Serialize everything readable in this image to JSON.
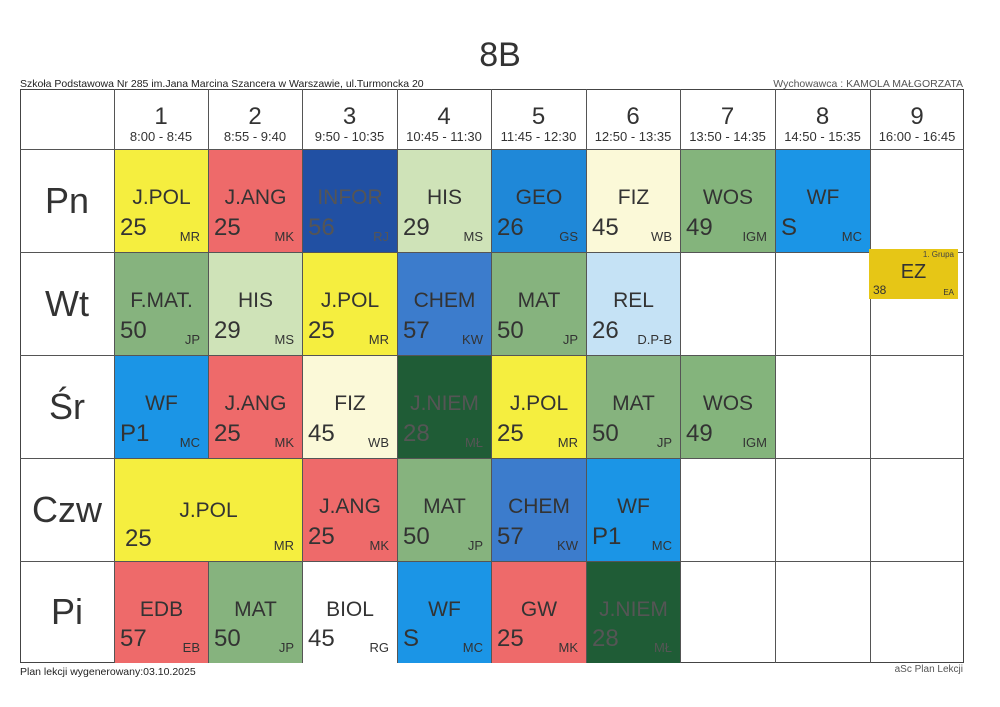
{
  "title": "8B",
  "school": "Szkoła Podstawowa Nr 285 im.Jana Marcina Szancera w Warszawie, ul.Turmoncka 20",
  "teacher": "Wychowawca : KAMOLA MAŁGORZATA",
  "footer_left": "Plan lekcji wygenerowany:03.10.2025",
  "footer_right": "aSc Plan Lekcji",
  "periods": [
    {
      "num": "1",
      "time": "8:00 - 8:45"
    },
    {
      "num": "2",
      "time": "8:55 - 9:40"
    },
    {
      "num": "3",
      "time": "9:50 - 10:35"
    },
    {
      "num": "4",
      "time": "10:45 - 11:30"
    },
    {
      "num": "5",
      "time": "11:45 - 12:30"
    },
    {
      "num": "6",
      "time": "12:50 - 13:35"
    },
    {
      "num": "7",
      "time": "13:50 - 14:35"
    },
    {
      "num": "8",
      "time": "14:50 - 15:35"
    },
    {
      "num": "9",
      "time": "16:00 - 16:45"
    }
  ],
  "days": [
    "Pn",
    "Wt",
    "Śr",
    "Czw",
    "Pi"
  ],
  "lessons": [
    {
      "day": 0,
      "period": 1,
      "span": 1,
      "subject": "J.POL",
      "room": "25",
      "teacher": "MR",
      "color": "#f5ee3f"
    },
    {
      "day": 0,
      "period": 2,
      "span": 1,
      "subject": "J.ANG",
      "room": "25",
      "teacher": "MK",
      "color": "#ee6a6a"
    },
    {
      "day": 0,
      "period": 3,
      "span": 1,
      "subject": "INFOR",
      "room": "56",
      "teacher": "RJ",
      "color": "#2150a3",
      "dark": true
    },
    {
      "day": 0,
      "period": 4,
      "span": 1,
      "subject": "HIS",
      "room": "29",
      "teacher": "MS",
      "color": "#cfe3b8"
    },
    {
      "day": 0,
      "period": 5,
      "span": 1,
      "subject": "GEO",
      "room": "26",
      "teacher": "GS",
      "color": "#1f88d8"
    },
    {
      "day": 0,
      "period": 6,
      "span": 1,
      "subject": "FIZ",
      "room": "45",
      "teacher": "WB",
      "color": "#fbf9d8"
    },
    {
      "day": 0,
      "period": 7,
      "span": 1,
      "subject": "WOS",
      "room": "49",
      "teacher": "IGM",
      "color": "#84b47c"
    },
    {
      "day": 0,
      "period": 8,
      "span": 1,
      "subject": "WF",
      "room": "S",
      "teacher": "MC",
      "color": "#1b95e6"
    },
    {
      "day": 1,
      "period": 1,
      "span": 1,
      "subject": "F.MAT.",
      "room": "50",
      "teacher": "JP",
      "color": "#86b37e"
    },
    {
      "day": 1,
      "period": 2,
      "span": 1,
      "subject": "HIS",
      "room": "29",
      "teacher": "MS",
      "color": "#cfe3b8"
    },
    {
      "day": 1,
      "period": 3,
      "span": 1,
      "subject": "J.POL",
      "room": "25",
      "teacher": "MR",
      "color": "#f5ee3f"
    },
    {
      "day": 1,
      "period": 4,
      "span": 1,
      "subject": "CHEM",
      "room": "57",
      "teacher": "KW",
      "color": "#3c7ccc"
    },
    {
      "day": 1,
      "period": 5,
      "span": 1,
      "subject": "MAT",
      "room": "50",
      "teacher": "JP",
      "color": "#86b37e"
    },
    {
      "day": 1,
      "period": 6,
      "span": 1,
      "subject": "REL",
      "room": "26",
      "teacher": "D.P-B",
      "color": "#c5e2f5"
    },
    {
      "day": 1,
      "period": 9,
      "span": 1,
      "subject": "EZ",
      "room": "38",
      "teacher": "EA",
      "group": "1. Grupa",
      "color": "#e6c616",
      "small": true
    },
    {
      "day": 2,
      "period": 1,
      "span": 1,
      "subject": "WF",
      "room": "P1",
      "teacher": "MC",
      "color": "#1b95e6"
    },
    {
      "day": 2,
      "period": 2,
      "span": 1,
      "subject": "J.ANG",
      "room": "25",
      "teacher": "MK",
      "color": "#ee6a6a"
    },
    {
      "day": 2,
      "period": 3,
      "span": 1,
      "subject": "FIZ",
      "room": "45",
      "teacher": "WB",
      "color": "#fbf9d8"
    },
    {
      "day": 2,
      "period": 4,
      "span": 1,
      "subject": "J.NIEM",
      "room": "28",
      "teacher": "MŁ",
      "color": "#1f5c36",
      "dark": true
    },
    {
      "day": 2,
      "period": 5,
      "span": 1,
      "subject": "J.POL",
      "room": "25",
      "teacher": "MR",
      "color": "#f5ee3f"
    },
    {
      "day": 2,
      "period": 6,
      "span": 1,
      "subject": "MAT",
      "room": "50",
      "teacher": "JP",
      "color": "#86b37e"
    },
    {
      "day": 2,
      "period": 7,
      "span": 1,
      "subject": "WOS",
      "room": "49",
      "teacher": "IGM",
      "color": "#84b47c"
    },
    {
      "day": 3,
      "period": 1,
      "span": 2,
      "subject": "J.POL",
      "room": "25",
      "teacher": "MR",
      "color": "#f5ee3f",
      "wide": true
    },
    {
      "day": 3,
      "period": 3,
      "span": 1,
      "subject": "J.ANG",
      "room": "25",
      "teacher": "MK",
      "color": "#ee6a6a"
    },
    {
      "day": 3,
      "period": 4,
      "span": 1,
      "subject": "MAT",
      "room": "50",
      "teacher": "JP",
      "color": "#86b37e"
    },
    {
      "day": 3,
      "period": 5,
      "span": 1,
      "subject": "CHEM",
      "room": "57",
      "teacher": "KW",
      "color": "#3c7ccc"
    },
    {
      "day": 3,
      "period": 6,
      "span": 1,
      "subject": "WF",
      "room": "P1",
      "teacher": "MC",
      "color": "#1b95e6"
    },
    {
      "day": 4,
      "period": 1,
      "span": 1,
      "subject": "EDB",
      "room": "57",
      "teacher": "EB",
      "color": "#ee6a6a"
    },
    {
      "day": 4,
      "period": 2,
      "span": 1,
      "subject": "MAT",
      "room": "50",
      "teacher": "JP",
      "color": "#86b37e"
    },
    {
      "day": 4,
      "period": 3,
      "span": 1,
      "subject": "BIOL",
      "room": "45",
      "teacher": "RG",
      "color": "#ffffff"
    },
    {
      "day": 4,
      "period": 4,
      "span": 1,
      "subject": "WF",
      "room": "S",
      "teacher": "MC",
      "color": "#1b95e6"
    },
    {
      "day": 4,
      "period": 5,
      "span": 1,
      "subject": "GW",
      "room": "25",
      "teacher": "MK",
      "color": "#ee6a6a"
    },
    {
      "day": 4,
      "period": 6,
      "span": 1,
      "subject": "J.NIEM",
      "room": "28",
      "teacher": "MŁ",
      "color": "#1f5c36",
      "dark": true
    }
  ]
}
